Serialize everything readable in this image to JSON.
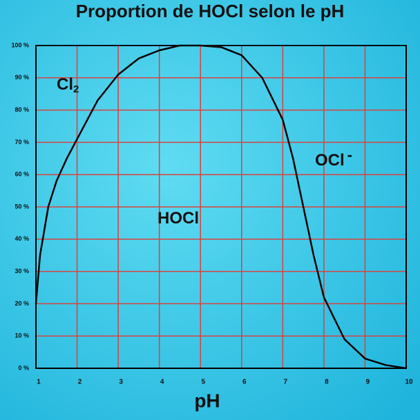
{
  "chart_data": {
    "type": "line",
    "title": "Proportion de HOCl selon le pH",
    "x_label": "pH",
    "x": [
      1,
      1.1,
      1.3,
      1.5,
      1.75,
      2,
      2.5,
      3,
      3.5,
      4,
      4.5,
      5,
      5.5,
      6,
      6.5,
      7,
      7.25,
      7.5,
      7.75,
      8,
      8.5,
      9,
      9.5,
      10
    ],
    "series": [
      {
        "name": "HOCl",
        "color": "#000000",
        "values": [
          20,
          35,
          50,
          58,
          65,
          71,
          83,
          91,
          96,
          98.5,
          100,
          100,
          99.5,
          97,
          90,
          77,
          65,
          50,
          35,
          22,
          9,
          3,
          1,
          0
        ]
      }
    ],
    "xlim": [
      1,
      10
    ],
    "xticks": [
      1,
      2,
      3,
      4,
      5,
      6,
      7,
      8,
      9,
      10
    ],
    "ylim": [
      0,
      100
    ],
    "yticks": [
      {
        "value": 0,
        "label": "0 %"
      },
      {
        "value": 10,
        "label": "10 %"
      },
      {
        "value": 20,
        "label": "20 %"
      },
      {
        "value": 30,
        "label": "30 %"
      },
      {
        "value": 40,
        "label": "40 %"
      },
      {
        "value": 50,
        "label": "50 %"
      },
      {
        "value": 60,
        "label": "60 %"
      },
      {
        "value": 70,
        "label": "70 %"
      },
      {
        "value": 80,
        "label": "80 %"
      },
      {
        "value": 90,
        "label": "90 %"
      },
      {
        "value": 100,
        "label": "100 %"
      }
    ],
    "grid": true,
    "grid_color": "#d9423c",
    "annotations": [
      {
        "text": "Cl",
        "sub": "2"
      },
      {
        "text": "HOCl"
      },
      {
        "text": "OCl",
        "sup": "-"
      }
    ]
  }
}
